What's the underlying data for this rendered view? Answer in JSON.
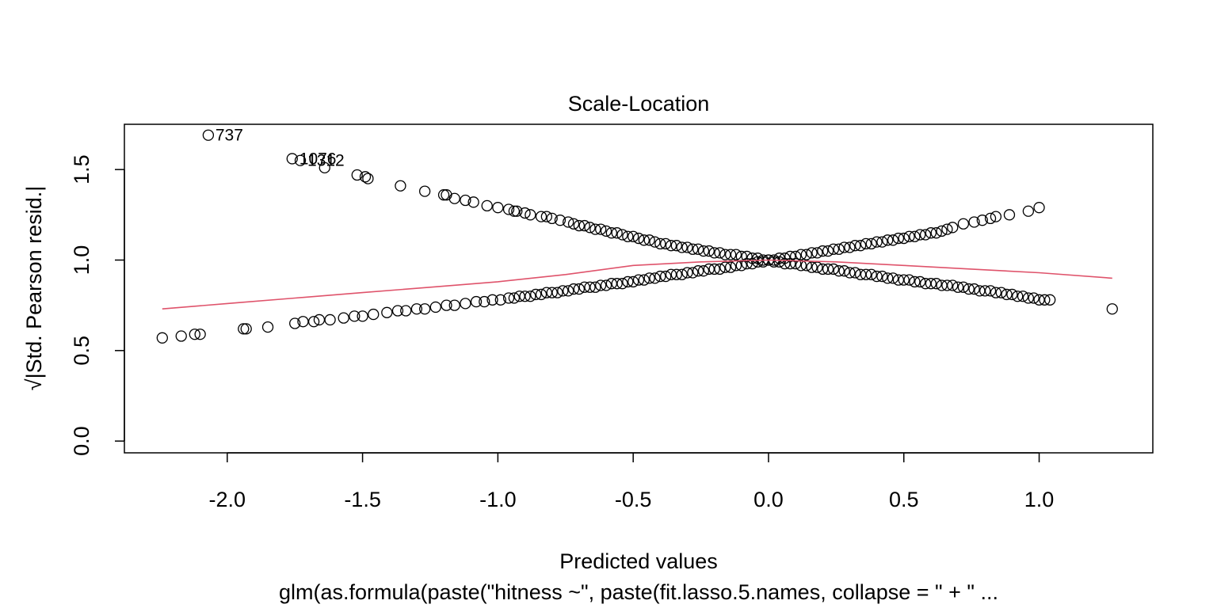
{
  "chart_data": {
    "type": "scatter",
    "title": "Scale-Location",
    "xlabel": "Predicted values",
    "ylabel": "√|Std. Pearson resid.|",
    "subtitle": "glm(as.formula(paste(\"hitness ~\", paste(fit.lasso.5.names, collapse = \" + \" ...",
    "xlim": [
      -2.38,
      1.42
    ],
    "ylim": [
      -0.065,
      1.75
    ],
    "x_ticks": [
      -2.0,
      -1.5,
      -1.0,
      -0.5,
      0.0,
      0.5,
      1.0
    ],
    "x_tick_labels": [
      "-2.0",
      "-1.5",
      "-1.0",
      "-0.5",
      "0.0",
      "0.5",
      "1.0"
    ],
    "y_ticks": [
      0.0,
      0.5,
      1.0,
      1.5
    ],
    "y_tick_labels": [
      "0.0",
      "0.5",
      "1.0",
      "1.5"
    ],
    "grid": false,
    "point_color": "#000000",
    "smooth_color": "#DF536B",
    "upper_branch": {
      "x": [
        -2.07,
        -1.76,
        -1.73,
        -1.64,
        -1.52,
        -1.49,
        -1.48,
        -1.36,
        -1.27,
        -1.2,
        -1.19,
        -1.16,
        -1.12,
        -1.09,
        -1.04,
        -1.0,
        -0.96,
        -0.94,
        -0.93,
        -0.9,
        -0.88,
        -0.84,
        -0.82,
        -0.8,
        -0.77,
        -0.74,
        -0.72,
        -0.7,
        -0.68,
        -0.66,
        -0.64,
        -0.62,
        -0.6,
        -0.58,
        -0.56,
        -0.54,
        -0.52,
        -0.5,
        -0.48,
        -0.46,
        -0.44,
        -0.42,
        -0.4,
        -0.38,
        -0.36,
        -0.34,
        -0.32,
        -0.3,
        -0.28,
        -0.26,
        -0.24,
        -0.22,
        -0.2,
        -0.18,
        -0.16,
        -0.14,
        -0.12,
        -0.1,
        -0.08,
        -0.06,
        -0.04,
        -0.02,
        0.0,
        0.02,
        0.04,
        0.06,
        0.08,
        0.1,
        0.12,
        0.14,
        0.16,
        0.18,
        0.2,
        0.22,
        0.24,
        0.26,
        0.28,
        0.3,
        0.32,
        0.34,
        0.36,
        0.38,
        0.4,
        0.42,
        0.44,
        0.46,
        0.48,
        0.5,
        0.52,
        0.54,
        0.56,
        0.58,
        0.6,
        0.62,
        0.64,
        0.66,
        0.68,
        0.7,
        0.72,
        0.74,
        0.76,
        0.78,
        0.8,
        0.82,
        0.84,
        0.86,
        0.88,
        0.9,
        0.92,
        0.94,
        0.96,
        0.98,
        1.0,
        1.02,
        1.04
      ],
      "y": [
        1.69,
        1.56,
        1.55,
        1.51,
        1.47,
        1.46,
        1.45,
        1.41,
        1.38,
        1.36,
        1.36,
        1.34,
        1.33,
        1.32,
        1.3,
        1.29,
        1.28,
        1.27,
        1.27,
        1.26,
        1.25,
        1.24,
        1.24,
        1.23,
        1.22,
        1.21,
        1.2,
        1.19,
        1.19,
        1.18,
        1.17,
        1.17,
        1.16,
        1.15,
        1.15,
        1.14,
        1.13,
        1.13,
        1.12,
        1.11,
        1.11,
        1.1,
        1.09,
        1.09,
        1.08,
        1.08,
        1.07,
        1.07,
        1.06,
        1.06,
        1.05,
        1.05,
        1.04,
        1.04,
        1.03,
        1.03,
        1.03,
        1.02,
        1.02,
        1.01,
        1.01,
        1.0,
        1.0,
        0.99,
        0.99,
        0.98,
        0.98,
        0.98,
        0.97,
        0.97,
        0.96,
        0.96,
        0.95,
        0.95,
        0.95,
        0.94,
        0.94,
        0.93,
        0.93,
        0.92,
        0.92,
        0.92,
        0.91,
        0.91,
        0.9,
        0.9,
        0.89,
        0.89,
        0.89,
        0.88,
        0.88,
        0.87,
        0.87,
        0.87,
        0.86,
        0.86,
        0.86,
        0.85,
        0.85,
        0.84,
        0.84,
        0.83,
        0.83,
        0.83,
        0.82,
        0.82,
        0.81,
        0.81,
        0.8,
        0.8,
        0.79,
        0.79,
        0.78,
        0.78,
        0.78
      ]
    },
    "lower_branch": {
      "x": [
        -2.24,
        -2.17,
        -2.12,
        -2.1,
        -1.94,
        -1.93,
        -1.85,
        -1.75,
        -1.72,
        -1.68,
        -1.66,
        -1.62,
        -1.57,
        -1.53,
        -1.5,
        -1.46,
        -1.41,
        -1.37,
        -1.34,
        -1.3,
        -1.27,
        -1.23,
        -1.19,
        -1.16,
        -1.12,
        -1.08,
        -1.05,
        -1.02,
        -0.99,
        -0.96,
        -0.94,
        -0.92,
        -0.9,
        -0.88,
        -0.86,
        -0.84,
        -0.82,
        -0.8,
        -0.78,
        -0.76,
        -0.74,
        -0.72,
        -0.7,
        -0.68,
        -0.66,
        -0.64,
        -0.62,
        -0.6,
        -0.58,
        -0.56,
        -0.54,
        -0.52,
        -0.5,
        -0.48,
        -0.46,
        -0.44,
        -0.42,
        -0.4,
        -0.38,
        -0.36,
        -0.34,
        -0.32,
        -0.3,
        -0.28,
        -0.26,
        -0.24,
        -0.22,
        -0.2,
        -0.18,
        -0.16,
        -0.14,
        -0.12,
        -0.1,
        -0.08,
        -0.06,
        -0.04,
        -0.02,
        0.0,
        0.02,
        0.04,
        0.06,
        0.08,
        0.1,
        0.12,
        0.14,
        0.16,
        0.18,
        0.2,
        0.22,
        0.24,
        0.26,
        0.28,
        0.3,
        0.32,
        0.34,
        0.36,
        0.38,
        0.4,
        0.42,
        0.44,
        0.46,
        0.48,
        0.5,
        0.52,
        0.54,
        0.56,
        0.58,
        0.6,
        0.62,
        0.64,
        0.66,
        0.68,
        0.72,
        0.76,
        0.79,
        0.82,
        0.84,
        0.89,
        0.96,
        1.0,
        1.27
      ],
      "y": [
        0.57,
        0.58,
        0.59,
        0.59,
        0.62,
        0.62,
        0.63,
        0.65,
        0.66,
        0.66,
        0.67,
        0.67,
        0.68,
        0.69,
        0.69,
        0.7,
        0.71,
        0.72,
        0.72,
        0.73,
        0.73,
        0.74,
        0.75,
        0.75,
        0.76,
        0.77,
        0.77,
        0.78,
        0.78,
        0.79,
        0.79,
        0.8,
        0.8,
        0.8,
        0.81,
        0.81,
        0.82,
        0.82,
        0.82,
        0.83,
        0.83,
        0.84,
        0.84,
        0.85,
        0.85,
        0.85,
        0.86,
        0.86,
        0.87,
        0.87,
        0.87,
        0.88,
        0.88,
        0.89,
        0.89,
        0.9,
        0.9,
        0.91,
        0.91,
        0.92,
        0.92,
        0.92,
        0.93,
        0.93,
        0.94,
        0.94,
        0.95,
        0.95,
        0.95,
        0.96,
        0.96,
        0.97,
        0.97,
        0.98,
        0.98,
        0.99,
        0.99,
        1.0,
        1.0,
        1.01,
        1.01,
        1.02,
        1.02,
        1.03,
        1.03,
        1.04,
        1.04,
        1.05,
        1.05,
        1.06,
        1.06,
        1.07,
        1.07,
        1.08,
        1.08,
        1.09,
        1.09,
        1.1,
        1.1,
        1.11,
        1.11,
        1.12,
        1.12,
        1.13,
        1.13,
        1.14,
        1.14,
        1.15,
        1.15,
        1.16,
        1.17,
        1.18,
        1.2,
        1.21,
        1.22,
        1.23,
        1.24,
        1.25,
        1.27,
        1.29,
        0.73
      ]
    },
    "smooth_line": {
      "x": [
        -2.24,
        -2.0,
        -1.75,
        -1.5,
        -1.25,
        -1.0,
        -0.75,
        -0.5,
        -0.25,
        0.0,
        0.25,
        0.5,
        0.75,
        1.0,
        1.27
      ],
      "y": [
        0.73,
        0.76,
        0.79,
        0.82,
        0.85,
        0.88,
        0.92,
        0.97,
        0.99,
        1.0,
        0.99,
        0.97,
        0.95,
        0.93,
        0.9
      ]
    },
    "point_labels": [
      {
        "text": "737",
        "x": -2.07,
        "y": 1.69
      },
      {
        "text": "1076",
        "x": -1.76,
        "y": 1.56
      },
      {
        "text": "1312",
        "x": -1.73,
        "y": 1.55
      }
    ]
  }
}
